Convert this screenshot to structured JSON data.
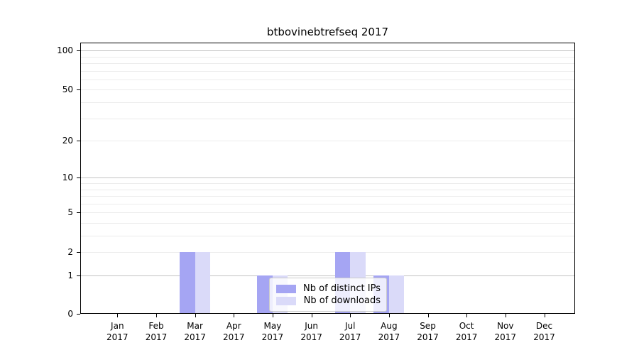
{
  "chart_data": {
    "type": "bar",
    "title": "btbovinebtrefseq 2017",
    "x_months": [
      "Jan",
      "Feb",
      "Mar",
      "Apr",
      "May",
      "Jun",
      "Jul",
      "Aug",
      "Sep",
      "Oct",
      "Nov",
      "Dec"
    ],
    "x_year": "2017",
    "series": [
      {
        "name": "Nb of distinct IPs",
        "color": "#a5a5f3",
        "values": [
          0,
          0,
          2,
          0,
          1,
          0,
          2,
          1,
          0,
          0,
          0,
          0
        ]
      },
      {
        "name": "Nb of downloads",
        "color": "#dadaf9",
        "values": [
          0,
          0,
          2,
          0,
          1,
          0,
          2,
          1,
          0,
          0,
          0,
          0
        ]
      }
    ],
    "yticks": [
      0,
      1,
      2,
      5,
      10,
      20,
      50,
      100
    ],
    "yscale": "log10(1+v)",
    "ylim": [
      0,
      115
    ],
    "grid": true,
    "major_gridlines": [
      1,
      10,
      100
    ],
    "minor_gridlines": [
      2,
      3,
      4,
      5,
      6,
      7,
      8,
      9,
      20,
      30,
      40,
      50,
      60,
      70,
      80,
      90
    ],
    "legend_position": "inside lower-center",
    "colors": {
      "major_grid": "#c3c3c3",
      "minor_grid": "#ececec",
      "axis": "#000000",
      "background": "#ffffff"
    }
  }
}
